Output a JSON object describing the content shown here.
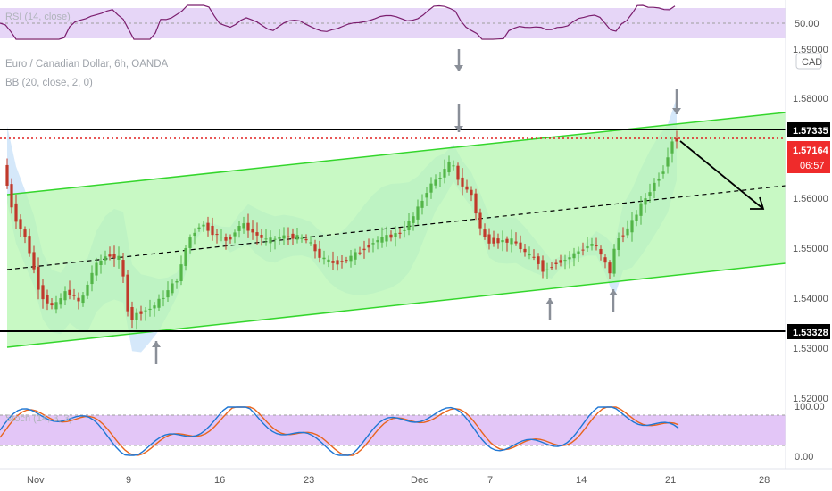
{
  "colors": {
    "up": "#26a69a",
    "down": "#ef5350",
    "upBody": "#53b548",
    "downBody": "#c0392b",
    "channel_fill": "#b6f7b0",
    "channel_line": "#34d62c",
    "bb_fill": "#b3d6f5",
    "rsi_band": "#e6d6f7",
    "stoch_band": "#e3c6f7",
    "rsi_line": "#7b1e6e",
    "stoch_k": "#1f77d4",
    "stoch_d": "#e8641d",
    "price_tag_bg": "#000000",
    "current_tag_bg": "#ef2b2b",
    "red_dotted": "#e02020",
    "arrow_gray": "#8a8f98"
  },
  "header": {
    "symbol_line": "Euro / Canadian Dollar, 6h, OANDA",
    "indicator_line": "BB (20, close, 2, 0)"
  },
  "rsi_panel": {
    "label": "RSI (14, close)",
    "level_label": "50.00"
  },
  "stoch_panel": {
    "label": "Stoch (14, 3, 3)",
    "upper_label": "100.00",
    "lower_label": "0.00"
  },
  "price_axis": {
    "currency": "CAD",
    "ticks": [
      "1.59000",
      "1.58000",
      "1.56000",
      "1.55000",
      "1.54000",
      "1.53000",
      "1.52000"
    ],
    "resistance_label": "1.57335",
    "support_label": "1.53328",
    "current_price": "1.57164",
    "countdown": "06:57"
  },
  "time_axis": {
    "ticks": [
      "Nov",
      "9",
      "16",
      "23",
      "Dec",
      "7",
      "14",
      "21",
      "28"
    ]
  }
}
